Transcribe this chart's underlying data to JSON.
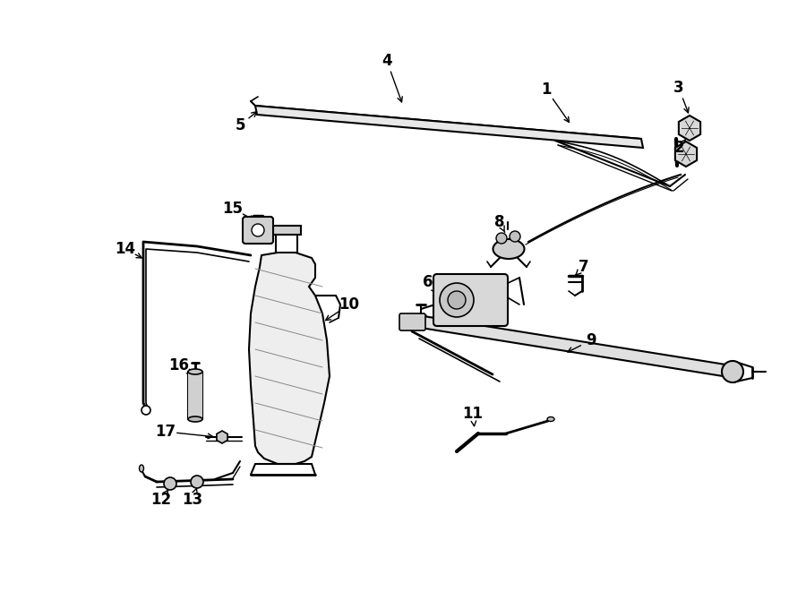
{
  "bg_color": "#ffffff",
  "line_color": "#000000",
  "figsize": [
    9.0,
    6.61
  ],
  "dpi": 100,
  "lw_main": 1.5,
  "lw_thin": 0.8,
  "lw_thick": 2.5,
  "font_size": 12
}
